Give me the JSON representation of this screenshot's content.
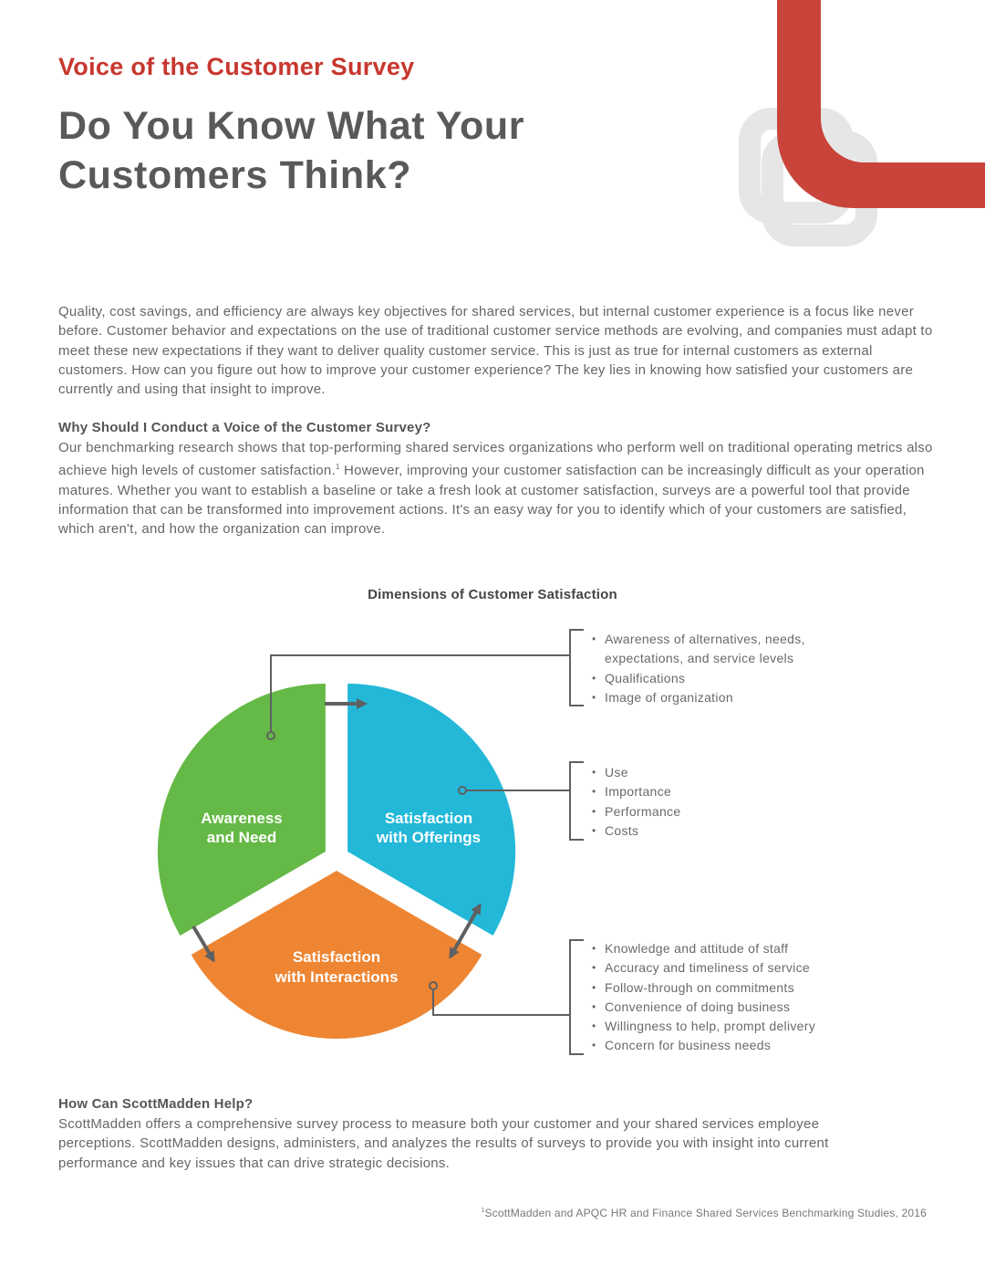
{
  "header": {
    "kicker": "Voice of the Customer Survey",
    "headline_line1": "Do You Know What Your",
    "headline_line2": "Customers Think?"
  },
  "intro": "Quality, cost savings, and efficiency are always key objectives for shared services, but internal customer experience is a focus like never before. Customer behavior and expectations on the use of traditional customer service methods are evolving, and companies must adapt to meet these new expectations if they want to deliver quality customer service. This is just as true for internal customers as external customers. How can you figure out how to improve your customer experience? The key lies in knowing how satisfied your customers are currently and using that insight to improve.",
  "why": {
    "heading": "Why Should I Conduct a Voice of the Customer Survey?",
    "body_part1": "Our benchmarking research shows that top-performing shared services organizations who perform well on traditional operating metrics also achieve high levels of customer satisfaction.",
    "footnote_marker": "1",
    "body_part2": " However, improving your customer satisfaction can be increasingly difficult as your operation matures. Whether you want to establish a baseline or take a fresh look at customer satisfaction, surveys are a powerful tool that provide information that can be transformed into improvement actions. It's an easy way for you to identify which of your customers are satisfied, which aren't, and how the organization can improve."
  },
  "diagram": {
    "title": "Dimensions of Customer Satisfaction",
    "colors": {
      "awareness": "#65b946",
      "offerings": "#23b8d8",
      "interactions": "#ee8532",
      "connector": "#5f6062"
    },
    "segments": [
      {
        "label_line1": "Awareness",
        "label_line2": "and Need"
      },
      {
        "label_line1": "Satisfaction",
        "label_line2": "with Offerings"
      },
      {
        "label_line1": "Satisfaction",
        "label_line2": "with Interactions"
      }
    ],
    "awareness_items": [
      "Awareness of alternatives, needs, expectations, and service levels",
      "Qualifications",
      "Image of organization"
    ],
    "offerings_items": [
      "Use",
      "Importance",
      "Performance",
      "Costs"
    ],
    "interactions_items": [
      "Knowledge and attitude of staff",
      "Accuracy and timeliness of service",
      "Follow-through on commitments",
      "Convenience of doing business",
      "Willingness to help, prompt delivery",
      "Concern for business needs"
    ]
  },
  "help": {
    "heading": "How Can ScottMadden Help?",
    "body": "ScottMadden offers a comprehensive survey process to measure both your customer and your shared services employee perceptions. ScottMadden designs, administers, and analyzes the results of surveys to provide you with insight into current performance and key issues that can drive strategic decisions."
  },
  "footnote": {
    "marker": "1",
    "text": "ScottMadden and APQC HR and Finance Shared Services Benchmarking Studies, 2016"
  }
}
